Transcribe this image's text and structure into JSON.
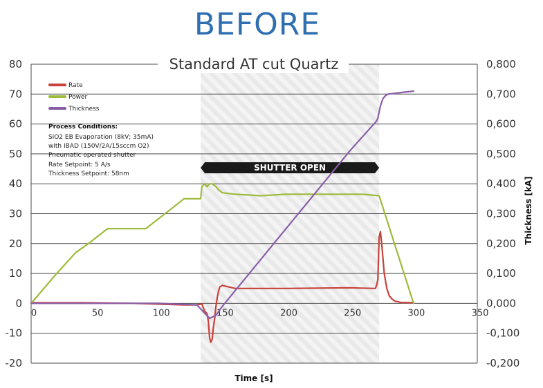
{
  "heading": "BEFORE",
  "chart_data": {
    "type": "line",
    "title": "Standard AT cut Quartz",
    "xlabel": "Time [s]",
    "ylabel": "",
    "y2label": "Thickness [kA]",
    "xlim": [
      0,
      350
    ],
    "ylim": [
      -20,
      80
    ],
    "y2lim": [
      -0.2,
      0.8
    ],
    "x_ticks": [
      "0",
      "50",
      "100",
      "150",
      "200",
      "250",
      "300",
      "350"
    ],
    "y_ticks": [
      "80",
      "70",
      "60",
      "50",
      "40",
      "30",
      "20",
      "10",
      "0",
      "-10",
      "-20"
    ],
    "y2_ticks": [
      "0,800",
      "0,700",
      "0,600",
      "0,500",
      "0,400",
      "0,300",
      "0,200",
      "0,100",
      "0,000",
      "-0,100",
      "-0,200"
    ],
    "grid": "horizontal",
    "legend_position": "top-left",
    "shaded_region": {
      "x_start": 133,
      "x_end": 273,
      "label": "SHUTTER OPEN"
    },
    "process_conditions": {
      "title": "Process Conditions:",
      "lines": [
        "SiO2 EB Evaporation (8kV; 35mA)",
        "with IBAD (150V/2A/15sccm O2)",
        "Pneumatic operated shutter",
        "Rate Setpoint: 5 A/s",
        "Thickness Setpoint: 58nm"
      ]
    },
    "series": [
      {
        "name": "Rate",
        "axis": "left",
        "color": "#c8413a",
        "x": [
          0,
          40,
          80,
          120,
          130,
          134,
          136,
          138,
          139,
          140,
          141,
          142,
          143,
          144,
          145,
          146,
          147,
          148,
          150,
          155,
          160,
          200,
          250,
          270,
          271,
          272,
          273,
          274,
          275,
          277,
          279,
          281,
          283,
          285,
          290,
          300
        ],
        "y": [
          0.2,
          0.2,
          0,
          -0.5,
          -0.5,
          -0.2,
          -2.5,
          -3.5,
          -6,
          -11.5,
          -13,
          -12,
          -8,
          -5,
          -1,
          2,
          4,
          5.5,
          6,
          5.5,
          5,
          5,
          5.2,
          5,
          6,
          8,
          22,
          24,
          20,
          10,
          5,
          2.5,
          1.5,
          0.8,
          0.3,
          0.2
        ]
      },
      {
        "name": "Power",
        "axis": "left",
        "color": "#9dbb3c",
        "x": [
          0,
          20,
          35,
          45,
          60,
          90,
          120,
          133,
          134,
          136,
          138,
          140,
          142,
          145,
          147,
          150,
          160,
          180,
          200,
          220,
          240,
          260,
          273,
          300
        ],
        "y": [
          0,
          10,
          17,
          20,
          25,
          25,
          35,
          35,
          39,
          40,
          39,
          40,
          40,
          39,
          38,
          37,
          36.5,
          36,
          36.5,
          36.5,
          36.5,
          36.5,
          36,
          0
        ]
      },
      {
        "name": "Thickness",
        "axis": "right",
        "color": "#8a5ea7",
        "x": [
          0,
          100,
          130,
          140,
          145,
          150,
          200,
          250,
          271,
          272,
          273,
          274,
          276,
          278,
          280,
          290,
          300
        ],
        "y": [
          0,
          0,
          -0.005,
          -0.05,
          -0.04,
          -0.01,
          0.25,
          0.51,
          0.61,
          0.62,
          0.64,
          0.66,
          0.685,
          0.695,
          0.7,
          0.705,
          0.71
        ]
      }
    ]
  }
}
